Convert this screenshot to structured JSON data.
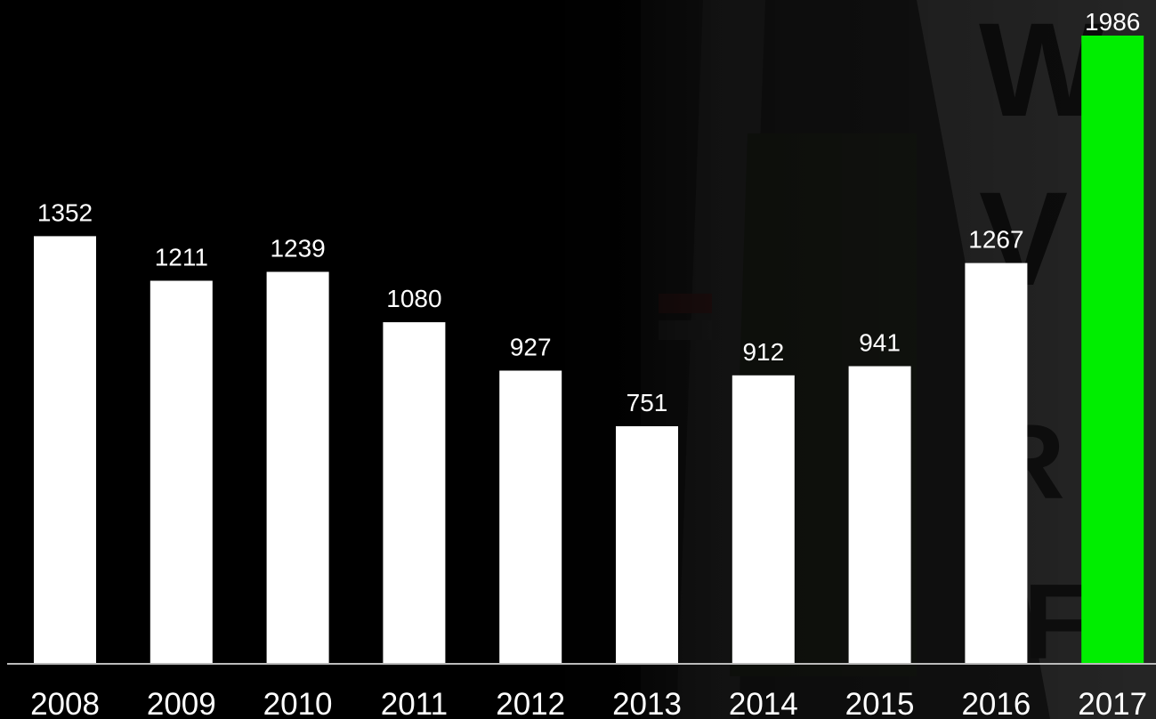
{
  "chart_data": {
    "type": "bar",
    "categories": [
      "2008",
      "2009",
      "2010",
      "2011",
      "2012",
      "2013",
      "2014",
      "2015",
      "2016",
      "2017"
    ],
    "values": [
      1352,
      1211,
      1239,
      1080,
      927,
      751,
      912,
      941,
      1267,
      1986
    ],
    "data_labels": [
      "1352",
      "1211",
      "1239",
      "1080",
      "927",
      "751",
      "912",
      "941",
      "1267",
      "1986"
    ],
    "highlight_index": 9,
    "ylim": [
      0,
      2000
    ],
    "grid": false,
    "legend": "none",
    "title": "",
    "xlabel": "",
    "ylabel": ""
  },
  "colors": {
    "background": "#000000",
    "bar": "#ffffff",
    "highlight_bar": "#00ee00",
    "text": "#ffffff",
    "axis": "#bbbbbb"
  }
}
